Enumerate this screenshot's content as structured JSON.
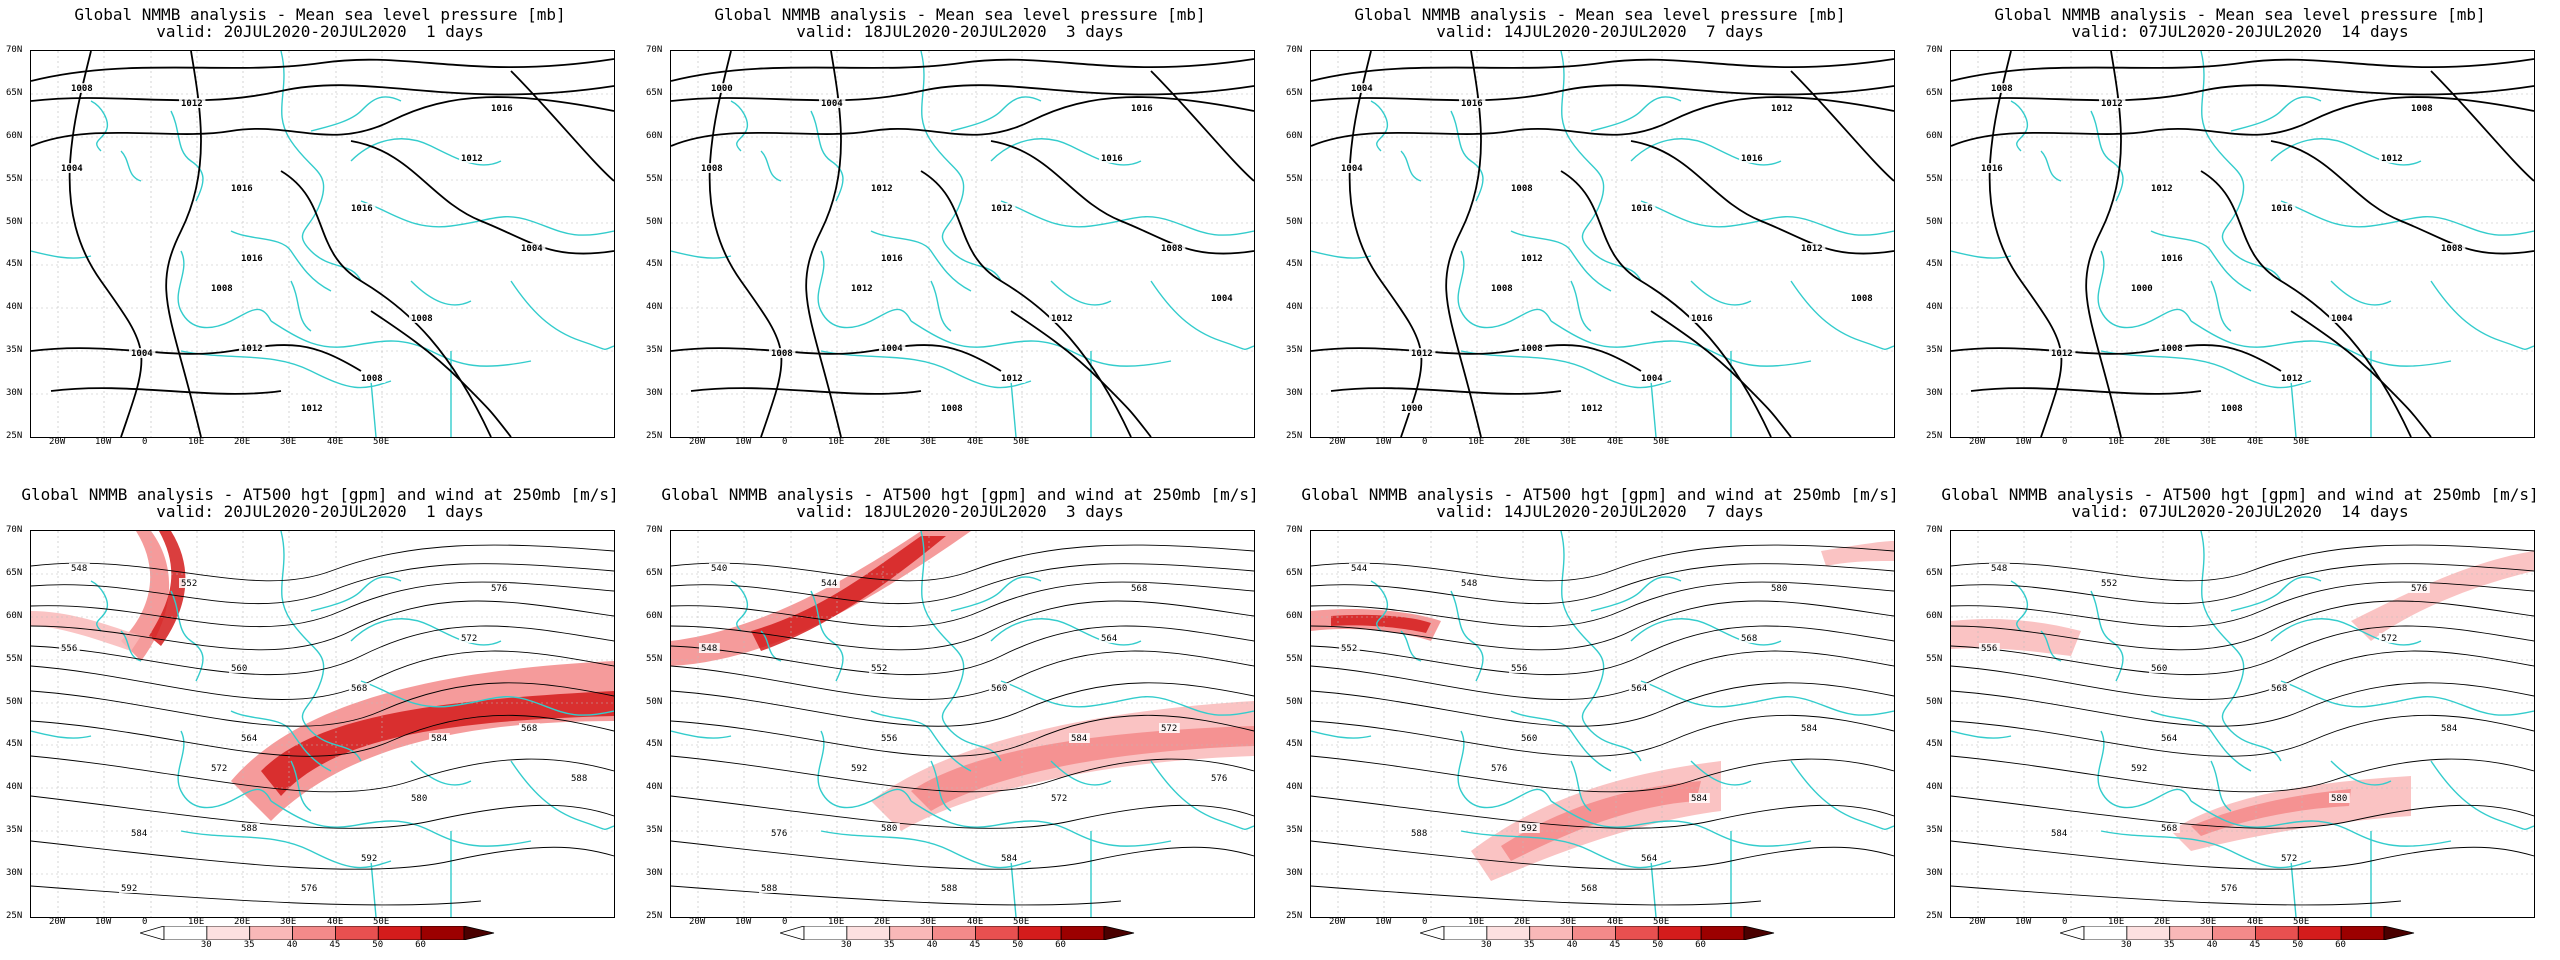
{
  "panels": [
    {
      "id": "p1",
      "row": 0,
      "col": 0,
      "title1": "Global NMMB analysis - Mean sea level pressure [mb]",
      "title2": "valid: 20JUL2020-20JUL2020  1 days",
      "contour_labels": [
        "1008",
        "1012",
        "1004",
        "1016",
        "1016",
        "1016",
        "1012",
        "1016",
        "1008",
        "1004",
        "1012",
        "1008",
        "1012",
        "1008",
        "1004"
      ]
    },
    {
      "id": "p2",
      "row": 0,
      "col": 1,
      "title1": "Global NMMB analysis - Mean sea level pressure [mb]",
      "title2": "valid: 18JUL2020-20JUL2020  3 days",
      "contour_labels": [
        "1000",
        "1004",
        "1008",
        "1012",
        "1016",
        "1012",
        "1016",
        "1016",
        "1012",
        "1008",
        "1004",
        "1012",
        "1008",
        "1012",
        "1008",
        "1004"
      ]
    },
    {
      "id": "p3",
      "row": 0,
      "col": 2,
      "title1": "Global NMMB analysis - Mean sea level pressure [mb]",
      "title2": "valid: 14JUL2020-20JUL2020  7 days",
      "contour_labels": [
        "1004",
        "1016",
        "1004",
        "1008",
        "1012",
        "1016",
        "1016",
        "1012",
        "1016",
        "1012",
        "1008",
        "1004",
        "1012",
        "1008",
        "1012",
        "1008",
        "1000"
      ]
    },
    {
      "id": "p4",
      "row": 0,
      "col": 3,
      "title1": "Global NMMB analysis - Mean sea level pressure [mb]",
      "title2": "valid: 07JUL2020-20JUL2020  14 days",
      "contour_labels": [
        "1008",
        "1012",
        "1016",
        "1012",
        "1016",
        "1016",
        "1012",
        "1008",
        "1004",
        "1012",
        "1008",
        "1012",
        "1008",
        "1000",
        "1008"
      ]
    },
    {
      "id": "p5",
      "row": 1,
      "col": 0,
      "title1": "Global NMMB analysis - AT500 hgt [gpm] and wind at 250mb [m/s]",
      "title2": "valid: 20JUL2020-20JUL2020  1 days",
      "contour_labels": [
        "548",
        "552",
        "556",
        "560",
        "564",
        "568",
        "572",
        "576",
        "580",
        "584",
        "588",
        "592",
        "576",
        "572",
        "568",
        "588",
        "592",
        "584"
      ]
    },
    {
      "id": "p6",
      "row": 1,
      "col": 1,
      "title1": "Global NMMB analysis - AT500 hgt [gpm] and wind at 250mb [m/s]",
      "title2": "valid: 18JUL2020-20JUL2020  3 days",
      "contour_labels": [
        "540",
        "544",
        "548",
        "552",
        "556",
        "560",
        "564",
        "568",
        "572",
        "576",
        "580",
        "584",
        "588",
        "592",
        "572",
        "576",
        "588",
        "584"
      ]
    },
    {
      "id": "p7",
      "row": 1,
      "col": 2,
      "title1": "Global NMMB analysis - AT500 hgt [gpm] and wind at 250mb [m/s]",
      "title2": "valid: 14JUL2020-20JUL2020  7 days",
      "contour_labels": [
        "544",
        "548",
        "552",
        "556",
        "560",
        "564",
        "568",
        "580",
        "584",
        "588",
        "592",
        "564",
        "568",
        "576",
        "584"
      ]
    },
    {
      "id": "p8",
      "row": 1,
      "col": 3,
      "title1": "Global NMMB analysis - AT500 hgt [gpm] and wind at 250mb [m/s]",
      "title2": "valid: 07JUL2020-20JUL2020  14 days",
      "contour_labels": [
        "548",
        "552",
        "556",
        "560",
        "564",
        "568",
        "572",
        "576",
        "580",
        "584",
        "568",
        "572",
        "576",
        "592",
        "584"
      ]
    }
  ],
  "lat_ticks": [
    "70N",
    "65N",
    "60N",
    "55N",
    "50N",
    "45N",
    "40N",
    "35N",
    "30N",
    "25N"
  ],
  "lon_ticks": [
    "20W",
    "10W",
    "0",
    "10E",
    "20E",
    "30E",
    "40E",
    "50E"
  ],
  "colorbar": {
    "ticks": [
      "30",
      "35",
      "40",
      "45",
      "50",
      "60"
    ],
    "colors": [
      "#fde0e0",
      "#f9b8b8",
      "#f38a8a",
      "#e85050",
      "#d41c1c",
      "#9c0000"
    ]
  },
  "colors": {
    "coast": "#33cccc",
    "contour": "#000000",
    "grid": "#bbbbbb"
  }
}
